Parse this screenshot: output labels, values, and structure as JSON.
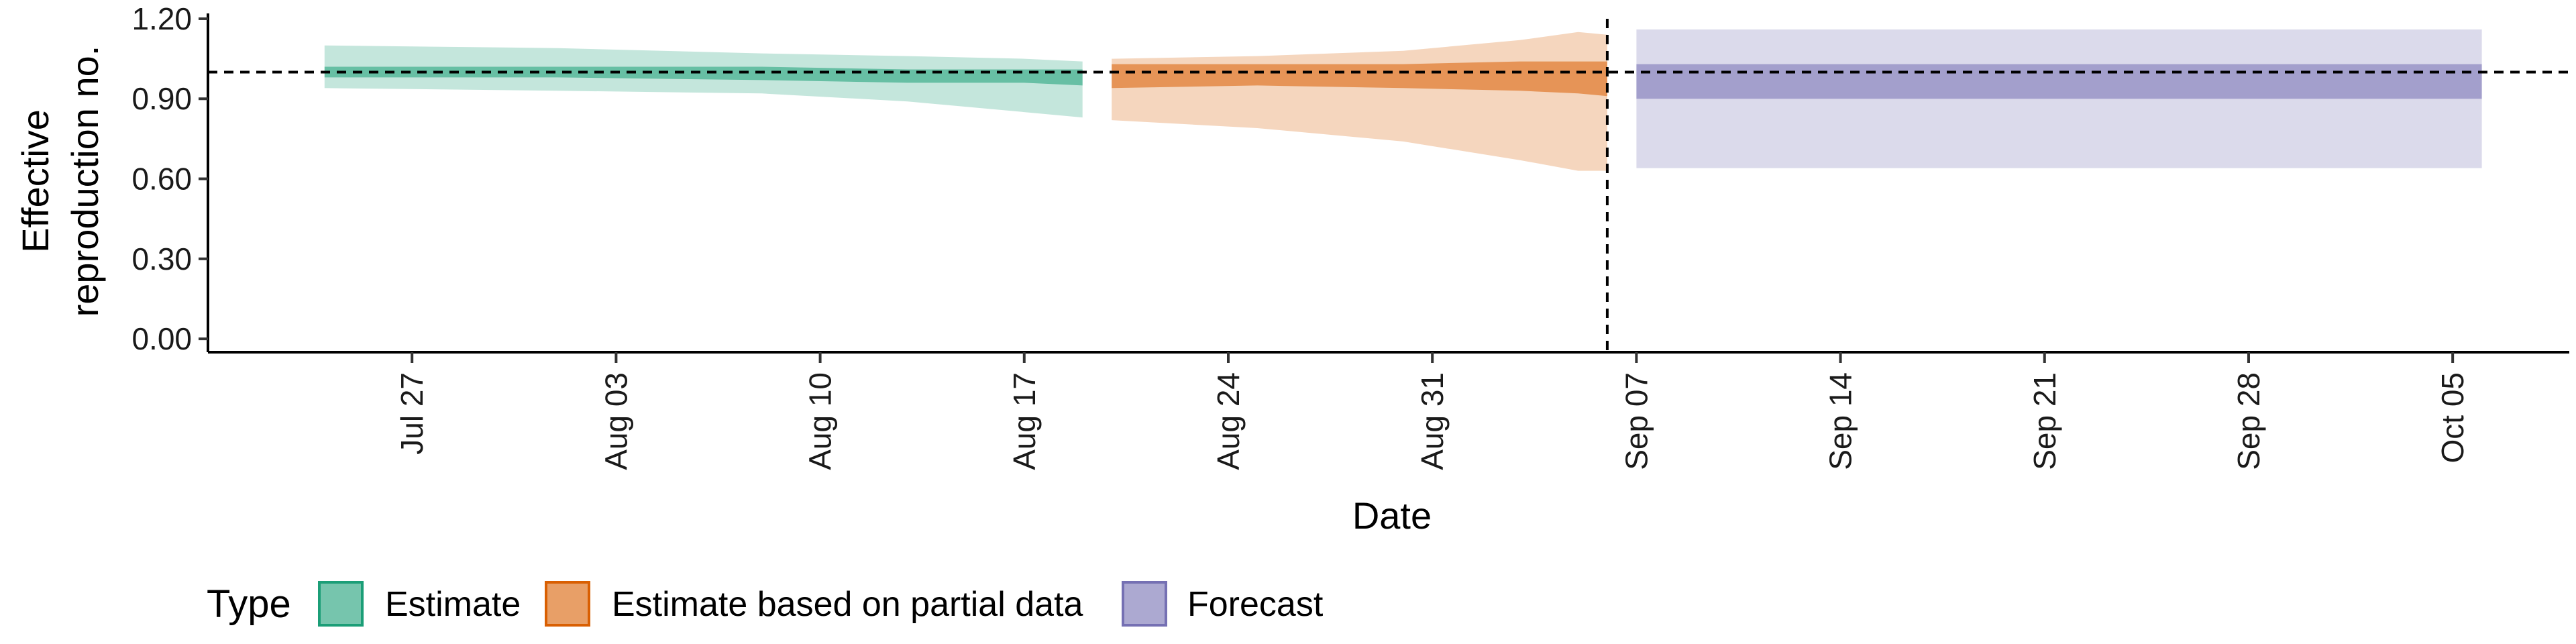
{
  "chart_data": {
    "type": "area",
    "title": "",
    "xlabel": "Date",
    "ylabel": [
      "Effective",
      "reproduction no."
    ],
    "x_ticks": [
      "Jul 27",
      "Aug 03",
      "Aug 10",
      "Aug 17",
      "Aug 24",
      "Aug 31",
      "Sep 07",
      "Sep 14",
      "Sep 21",
      "Sep 28",
      "Oct 05"
    ],
    "x_tick_dates": [
      "2020-07-27",
      "2020-08-03",
      "2020-08-10",
      "2020-08-17",
      "2020-08-24",
      "2020-08-31",
      "2020-09-07",
      "2020-09-14",
      "2020-09-21",
      "2020-09-28",
      "2020-10-05"
    ],
    "xlim": [
      "2020-07-20",
      "2020-10-09"
    ],
    "y_ticks": [
      "0.00",
      "0.30",
      "0.60",
      "0.90",
      "1.20"
    ],
    "y_tick_values": [
      0,
      0.3,
      0.6,
      0.9,
      1.2
    ],
    "ylim": [
      -0.05,
      1.22
    ],
    "grid": false,
    "reference_lines": {
      "horizontal_y": 1.0,
      "vertical_date": "2020-09-06"
    },
    "legend": {
      "title": "Type",
      "position": "bottom-left",
      "items": [
        {
          "label": "Estimate",
          "fill": "#1b9e77",
          "stroke": "#1b9e77"
        },
        {
          "label": "Estimate based on partial data",
          "fill": "#d95f02",
          "stroke": "#d95f02"
        },
        {
          "label": "Forecast",
          "fill": "#7570b3",
          "stroke": "#7570b3"
        }
      ]
    },
    "series": [
      {
        "name": "Estimate",
        "color": "#1b9e77",
        "x": [
          "2020-07-24",
          "2020-08-01",
          "2020-08-08",
          "2020-08-13",
          "2020-08-17",
          "2020-08-19"
        ],
        "outer_upper": [
          1.1,
          1.09,
          1.07,
          1.06,
          1.05,
          1.04
        ],
        "inner_upper": [
          1.02,
          1.02,
          1.02,
          1.01,
          1.01,
          1.01
        ],
        "inner_lower": [
          0.98,
          0.98,
          0.97,
          0.96,
          0.96,
          0.95
        ],
        "outer_lower": [
          0.94,
          0.93,
          0.92,
          0.89,
          0.85,
          0.83
        ]
      },
      {
        "name": "Estimate based on partial data",
        "color": "#d95f02",
        "x": [
          "2020-08-20",
          "2020-08-25",
          "2020-08-30",
          "2020-09-03",
          "2020-09-05",
          "2020-09-06"
        ],
        "outer_upper": [
          1.05,
          1.06,
          1.08,
          1.12,
          1.15,
          1.14
        ],
        "inner_upper": [
          1.03,
          1.03,
          1.03,
          1.04,
          1.04,
          1.04
        ],
        "inner_lower": [
          0.94,
          0.95,
          0.94,
          0.93,
          0.92,
          0.91
        ],
        "outer_lower": [
          0.82,
          0.79,
          0.74,
          0.67,
          0.63,
          0.63
        ]
      },
      {
        "name": "Forecast",
        "color": "#7570b3",
        "x": [
          "2020-09-07",
          "2020-10-06"
        ],
        "outer_upper": [
          1.16,
          1.16
        ],
        "inner_upper": [
          1.03,
          1.03
        ],
        "inner_lower": [
          0.9,
          0.9
        ],
        "outer_lower": [
          0.64,
          0.64
        ]
      }
    ]
  }
}
